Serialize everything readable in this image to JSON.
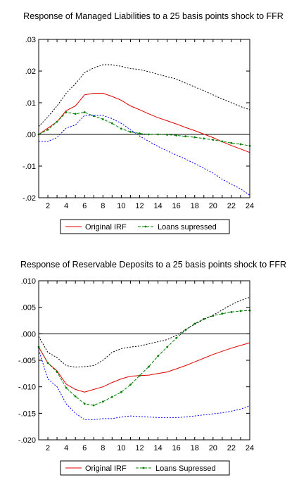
{
  "chart_data": [
    {
      "type": "line",
      "title": "Response of Managed Liabilities to a 25 basis points shock to FFR",
      "xlim": [
        1,
        24
      ],
      "ylim": [
        -0.02,
        0.03
      ],
      "x_ticks": [
        "2",
        "4",
        "6",
        "8",
        "10",
        "12",
        "14",
        "16",
        "18",
        "20",
        "22",
        "24"
      ],
      "y_ticks": [
        {
          "value": 0.03,
          "label": ".03"
        },
        {
          "value": 0.02,
          "label": ".02"
        },
        {
          "value": 0.01,
          "label": ".01"
        },
        {
          "value": 0.0,
          "label": ".00"
        },
        {
          "value": -0.01,
          "label": "-.01"
        },
        {
          "value": -0.02,
          "label": "-.02"
        }
      ],
      "zero_line": true,
      "legend": {
        "position": "bottom",
        "entries": [
          "Original IRF",
          "Loans supressed"
        ]
      },
      "x": [
        1,
        2,
        3,
        4,
        5,
        6,
        7,
        8,
        9,
        10,
        11,
        12,
        13,
        14,
        15,
        16,
        17,
        18,
        19,
        20,
        21,
        22,
        23,
        24
      ],
      "series": [
        {
          "name": "Original IRF",
          "color": "#e00000",
          "style": "solid",
          "values": [
            0.0,
            0.002,
            0.004,
            0.0075,
            0.009,
            0.0125,
            0.013,
            0.013,
            0.012,
            0.0108,
            0.009,
            0.0078,
            0.0065,
            0.0053,
            0.0043,
            0.0033,
            0.0022,
            0.0012,
            0.0001,
            -0.001,
            -0.0023,
            -0.0035,
            -0.0046,
            -0.0057
          ]
        },
        {
          "name": "Loans supressed",
          "color": "#008000",
          "style": "dash-marker",
          "values": [
            0.0,
            0.0015,
            0.004,
            0.007,
            0.0065,
            0.007,
            0.0058,
            0.0048,
            0.0035,
            0.0018,
            0.0008,
            0.0003,
            0.0,
            0.0,
            -0.0001,
            -0.0003,
            -0.0006,
            -0.0009,
            -0.0013,
            -0.0017,
            -0.0022,
            -0.0027,
            -0.0031,
            -0.0036
          ]
        },
        {
          "name": "",
          "color": "#000000",
          "style": "dotted",
          "values": [
            0.0025,
            0.0055,
            0.009,
            0.013,
            0.016,
            0.0195,
            0.021,
            0.022,
            0.022,
            0.0215,
            0.0208,
            0.0205,
            0.0198,
            0.019,
            0.0182,
            0.0175,
            0.0162,
            0.015,
            0.0138,
            0.0125,
            0.0112,
            0.01,
            0.0088,
            0.0078
          ]
        },
        {
          "name": "",
          "color": "#0000ff",
          "style": "dotted",
          "values": [
            -0.0022,
            -0.0022,
            -0.001,
            0.002,
            0.003,
            0.006,
            0.006,
            0.006,
            0.005,
            0.0035,
            0.0015,
            -0.0005,
            -0.0022,
            -0.0038,
            -0.0052,
            -0.0065,
            -0.0078,
            -0.0092,
            -0.0107,
            -0.0122,
            -0.0142,
            -0.0157,
            -0.0172,
            -0.0192
          ]
        }
      ]
    },
    {
      "type": "line",
      "title": "Response of Reservable Deposits to a 25 basis points shock to FFR",
      "xlim": [
        1,
        24
      ],
      "ylim": [
        -0.02,
        0.01
      ],
      "x_ticks": [
        "2",
        "4",
        "6",
        "8",
        "10",
        "12",
        "14",
        "16",
        "18",
        "20",
        "22",
        "24"
      ],
      "y_ticks": [
        {
          "value": 0.01,
          "label": ".010"
        },
        {
          "value": 0.005,
          "label": ".005"
        },
        {
          "value": 0.0,
          "label": ".000"
        },
        {
          "value": -0.005,
          "label": "-.005"
        },
        {
          "value": -0.01,
          "label": "-.010"
        },
        {
          "value": -0.015,
          "label": "-.015"
        },
        {
          "value": -0.02,
          "label": "-.020"
        }
      ],
      "zero_line": true,
      "legend": {
        "position": "bottom",
        "entries": [
          "Original IRF",
          "Loans Supressed"
        ]
      },
      "x": [
        1,
        2,
        3,
        4,
        5,
        6,
        7,
        8,
        9,
        10,
        11,
        12,
        13,
        14,
        15,
        16,
        17,
        18,
        19,
        20,
        21,
        22,
        23,
        24
      ],
      "series": [
        {
          "name": "Original IRF",
          "color": "#e00000",
          "style": "solid",
          "values": [
            -0.0025,
            -0.0055,
            -0.007,
            -0.0095,
            -0.0105,
            -0.011,
            -0.0105,
            -0.01,
            -0.0092,
            -0.0085,
            -0.008,
            -0.0079,
            -0.0078,
            -0.0075,
            -0.0072,
            -0.0066,
            -0.006,
            -0.0053,
            -0.0046,
            -0.0039,
            -0.0033,
            -0.0027,
            -0.0022,
            -0.0017
          ]
        },
        {
          "name": "Loans Supressed",
          "color": "#008000",
          "style": "dash-marker",
          "values": [
            -0.0025,
            -0.0055,
            -0.0072,
            -0.0102,
            -0.0118,
            -0.0132,
            -0.0135,
            -0.0128,
            -0.0119,
            -0.011,
            -0.0096,
            -0.0079,
            -0.0062,
            -0.0042,
            -0.0025,
            -0.0008,
            0.0007,
            0.0019,
            0.0028,
            0.0034,
            0.0038,
            0.0041,
            0.0043,
            0.0044
          ]
        },
        {
          "name": "",
          "color": "#000000",
          "style": "dotted",
          "values": [
            -0.0005,
            -0.0035,
            -0.0045,
            -0.006,
            -0.0063,
            -0.0062,
            -0.006,
            -0.005,
            -0.0035,
            -0.0028,
            -0.0025,
            -0.0023,
            -0.0019,
            -0.0015,
            -0.0011,
            -0.0003,
            0.0008,
            0.0018,
            0.0027,
            0.0035,
            0.0045,
            0.0055,
            0.0063,
            0.0069
          ]
        },
        {
          "name": "",
          "color": "#0000ff",
          "style": "dotted",
          "values": [
            -0.003,
            -0.0085,
            -0.01,
            -0.0132,
            -0.015,
            -0.0162,
            -0.0162,
            -0.016,
            -0.016,
            -0.0157,
            -0.0155,
            -0.0156,
            -0.0157,
            -0.0158,
            -0.0158,
            -0.0158,
            -0.0157,
            -0.0155,
            -0.0153,
            -0.0151,
            -0.0149,
            -0.0146,
            -0.0142,
            -0.0136
          ]
        }
      ]
    }
  ]
}
